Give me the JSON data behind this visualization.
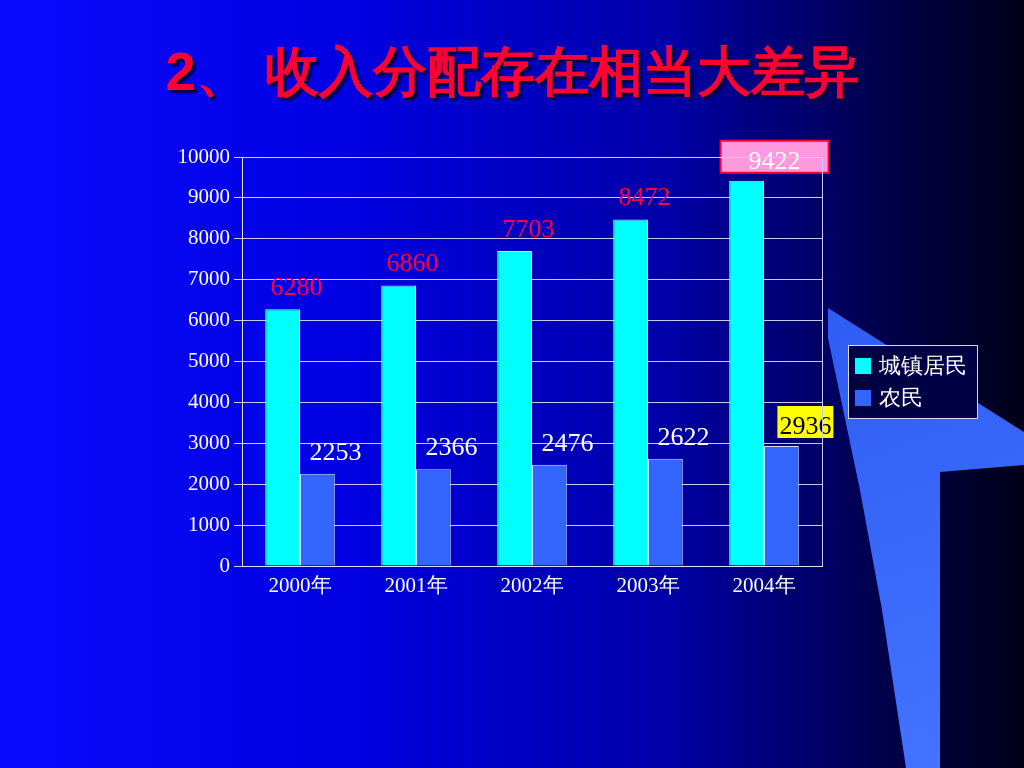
{
  "chart_data": {
    "type": "bar",
    "title": "2、 收入分配存在相当大差异",
    "categories": [
      "2000年",
      "2001年",
      "2002年",
      "2003年",
      "2004年"
    ],
    "series": [
      {
        "name": "城镇居民",
        "color": "#00ffff",
        "values": [
          6280,
          6860,
          7703,
          8472,
          9422
        ]
      },
      {
        "name": "农民",
        "color": "#3366ff",
        "values": [
          2253,
          2366,
          2476,
          2622,
          2936
        ]
      }
    ],
    "ylim": [
      0,
      10000
    ],
    "yticks": [
      0,
      1000,
      2000,
      3000,
      4000,
      5000,
      6000,
      7000,
      8000,
      9000,
      10000
    ],
    "grid": "y",
    "legend": "right",
    "data_labels": true
  }
}
